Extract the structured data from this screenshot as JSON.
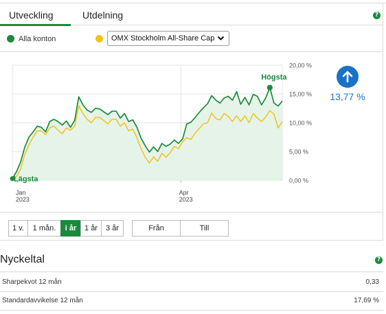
{
  "tabs": {
    "active": "Utveckling",
    "other": "Utdelning",
    "help_icon": "?"
  },
  "legend": {
    "series1": {
      "label": "Alla konton",
      "color": "#1b8a3c"
    },
    "series2_color": "#f0c419",
    "compare_select": {
      "value": "OMX Stockholm All-Share Cap"
    }
  },
  "return": {
    "value": "13,77 %",
    "color": "#1a72c8",
    "icon": "arrow-up-icon"
  },
  "chart_data": {
    "type": "line",
    "x_ticks": [
      {
        "month": "Jan",
        "year": "2023"
      },
      {
        "month": "Apr",
        "year": "2023"
      }
    ],
    "y_ticks": [
      "20,00 %",
      "15,00 %",
      "10,00 %",
      "5,00 %",
      "0,00 %"
    ],
    "ylim": [
      0,
      20
    ],
    "grid": true,
    "annotations": {
      "high": "Högsta",
      "low": "Lägsta"
    },
    "series": [
      {
        "color": "#1b8a3c",
        "area": true,
        "values": [
          0.3,
          1.5,
          3.2,
          5.8,
          7.5,
          8.4,
          9.4,
          9.2,
          8.4,
          10.2,
          10.6,
          10.2,
          9.6,
          10.3,
          9.2,
          10.4,
          14.5,
          13.1,
          12.2,
          11.8,
          12.5,
          12.4,
          11.9,
          11.4,
          12.0,
          12.0,
          10.8,
          11.6,
          10.2,
          10.5,
          9.2,
          7.3,
          6.0,
          4.9,
          5.8,
          5.0,
          6.4,
          5.9,
          6.3,
          7.0,
          6.4,
          7.2,
          9.8,
          10.1,
          10.9,
          11.8,
          12.6,
          13.3,
          14.7,
          13.9,
          13.4,
          14.3,
          14.6,
          13.9,
          15.4,
          13.2,
          14.4,
          13.1,
          14.9,
          14.6,
          13.1,
          14.3,
          16.1,
          13.4,
          12.9,
          13.77
        ]
      },
      {
        "color": "#f0c419",
        "area": false,
        "values": [
          0.2,
          0.6,
          2.0,
          4.5,
          6.2,
          7.5,
          8.6,
          8.6,
          7.9,
          9.1,
          9.4,
          8.7,
          8.1,
          9.1,
          8.7,
          9.4,
          12.9,
          11.6,
          10.6,
          10.0,
          10.9,
          10.9,
          10.4,
          9.8,
          10.6,
          10.6,
          9.4,
          10.0,
          8.6,
          8.9,
          7.4,
          5.5,
          4.0,
          3.0,
          4.1,
          3.3,
          4.7,
          4.0,
          4.8,
          5.9,
          5.5,
          6.7,
          7.4,
          7.1,
          8.2,
          9.0,
          9.8,
          10.0,
          11.7,
          10.7,
          10.5,
          11.6,
          11.1,
          10.2,
          11.2,
          10.2,
          11.2,
          10.0,
          11.6,
          10.8,
          10.2,
          11.0,
          12.1,
          11.5,
          9.1,
          10.2
        ]
      }
    ]
  },
  "periods": [
    {
      "label": "1 v."
    },
    {
      "label": "1 mån."
    },
    {
      "label": "i år"
    },
    {
      "label": "1 år"
    },
    {
      "label": "3 år"
    }
  ],
  "selected_period": "i år",
  "range": {
    "from": "Från",
    "to": "Till"
  },
  "nyckeltal": {
    "title": "Nyckeltal",
    "rows": [
      {
        "label": "Sharpekvot 12 mån",
        "value": "0,33"
      },
      {
        "label": "Standardavvikelse 12 mån",
        "value": "17,69 %"
      }
    ]
  }
}
